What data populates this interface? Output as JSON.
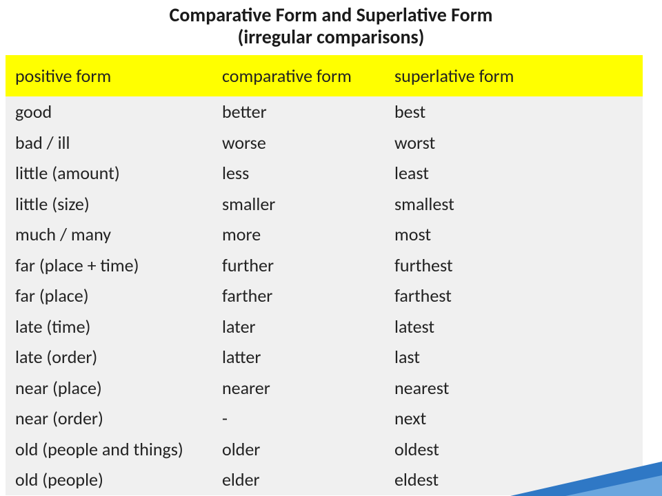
{
  "title": {
    "line1": "Comparative Form and Superlative Form",
    "line2": "(irregular comparisons)"
  },
  "table": {
    "headers": [
      "positive form",
      "comparative form",
      "superlative form"
    ],
    "header_bg": "#ffff00",
    "row_bg": "#f0f0f0",
    "rows": [
      [
        "good",
        "better",
        "best"
      ],
      [
        "bad / ill",
        "worse",
        "worst"
      ],
      [
        "little (amount)",
        "less",
        "least"
      ],
      [
        "little (size)",
        "smaller",
        "smallest"
      ],
      [
        "much / many",
        "more",
        "most"
      ],
      [
        "far (place + time)",
        "further",
        "furthest"
      ],
      [
        "far (place)",
        "farther",
        "farthest"
      ],
      [
        "late (time)",
        "later",
        "latest"
      ],
      [
        "late (order)",
        "latter",
        "last"
      ],
      [
        "near (place)",
        "nearer",
        "nearest"
      ],
      [
        "near (order)",
        "-",
        "next"
      ],
      [
        "old (people and things)",
        "older",
        "oldest"
      ],
      [
        "old (people)",
        "elder",
        "eldest"
      ]
    ]
  },
  "accent_colors": {
    "primary": "#2f78c5",
    "secondary": "#6aa6de"
  }
}
